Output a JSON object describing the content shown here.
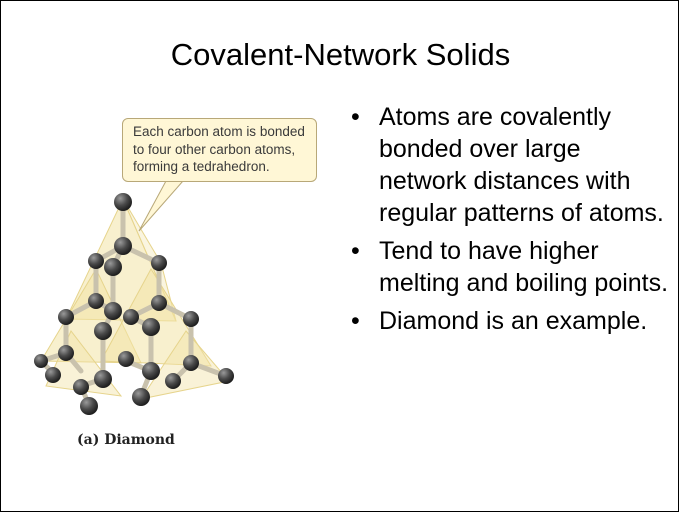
{
  "slide": {
    "title": "Covalent-Network Solids",
    "bullets": [
      {
        "marker": "•",
        "text": "Atoms are covalently bonded over large network distances with regular patterns of atoms."
      },
      {
        "marker": "•",
        "text": "Tend to have higher melting and boiling points."
      },
      {
        "marker": "•",
        "text": "Diamond is an example."
      }
    ]
  },
  "figure": {
    "callout_lines": [
      "Each carbon atom is bonded",
      "to four other carbon atoms,",
      "forming a tedrahedron."
    ],
    "caption": "(a) Diamond",
    "colors": {
      "tetrahedron_fill": "#f2e3a6",
      "callout_fill": "#fff7d6",
      "atom": "#4a4a4a",
      "bond": "#c9c2ad"
    }
  }
}
